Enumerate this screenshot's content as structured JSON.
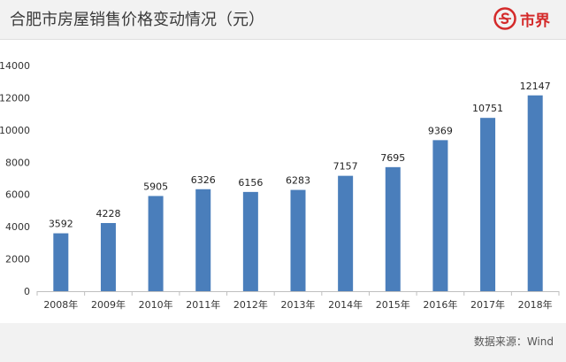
{
  "header": {
    "title": "合肥市房屋销售价格变动情况（元）",
    "logo_text": "市界"
  },
  "footer": {
    "source": "数据来源：Wind"
  },
  "colors": {
    "bar": "#4a7ebb",
    "logo": "#d42a2a"
  },
  "chart_data": {
    "type": "bar",
    "categories": [
      "2008年",
      "2009年",
      "2010年",
      "2011年",
      "2012年",
      "2013年",
      "2014年",
      "2015年",
      "2016年",
      "2017年",
      "2018年"
    ],
    "values": [
      3592,
      4228,
      5905,
      6326,
      6156,
      6283,
      7157,
      7695,
      9369,
      10751,
      12147
    ],
    "title": "合肥市房屋销售价格变动情况（元）",
    "xlabel": "",
    "ylabel": "",
    "ylim": [
      0,
      14000
    ],
    "yticks": [
      0,
      2000,
      4000,
      6000,
      8000,
      10000,
      12000,
      14000
    ],
    "grid": false,
    "legend": "none"
  }
}
